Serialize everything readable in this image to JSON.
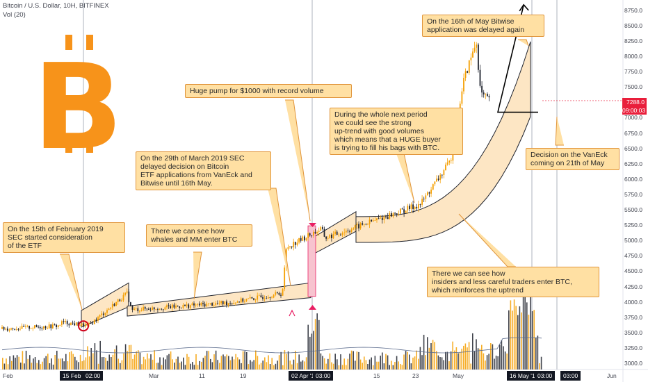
{
  "header": {
    "title": "Bitcoin / U.S. Dollar, 10H, BITFINEX",
    "indicator": "Vol (20)"
  },
  "colors": {
    "up": "#f59f00",
    "down": "#1e222d",
    "note_fill": "#ffe0a3",
    "note_border": "#e0943a",
    "channel_fill": "#fde6c4",
    "logo": "#f7931a",
    "price_flag": "#e91e3b",
    "time_flag": "#131722",
    "highlight": "#f7c3cf"
  },
  "logo": {
    "glyph": "B",
    "icon": "bitcoin-logo-icon"
  },
  "notes": {
    "feb": "On the 15th of February 2019\nSEC started consideration\nof the ETF",
    "whales": "There we can see how\nwhales and MM enter BTC",
    "march": "On the 29th of March 2019 SEC\ndelayed decision on Bitcoin\nETF applications from VanEck and\nBitwise until 16th May.",
    "pump": "Huge pump for $1000 with record volume",
    "uptrend": "During the whole next period\nwe could see the strong\nup-trend with good volumes\nwhich means that a HUGE buyer\nis trying to fill his bags with BTC.",
    "insiders": "There we can see how\ninsiders and less careful traders enter BTC,\nwhich reinforces the uptrend",
    "may16": "On the 16th of May Bitwise\napplication was delayed again",
    "vaneck": "Decision on the VanEck\ncoming on 21th of May"
  },
  "price_flags": {
    "price": "7288.0",
    "countdown": "09:00:03"
  },
  "time_flags": [
    "15 Feb '19",
    "02:00",
    "02 Apr '19",
    "03:00",
    "16 May '19",
    "03:00",
    "03:00"
  ],
  "chart_data": {
    "type": "candlestick",
    "y_axis_ticks": [
      3000,
      3250,
      3500,
      3750,
      4000,
      4250,
      4500,
      4750,
      5000,
      5250,
      5500,
      5750,
      6000,
      6250,
      6500,
      6750,
      7000,
      7250,
      7500,
      7750,
      8000,
      8250,
      8500,
      8750
    ],
    "ylim": [
      2950,
      8950
    ],
    "x_tick_labels": [
      "Feb",
      "Mar",
      "11",
      "19",
      "15",
      "23",
      "May",
      "Jun"
    ],
    "last_price": 7288.0,
    "price_path": [
      {
        "date": "2019-01-26",
        "price": 3570
      },
      {
        "date": "2019-02-08",
        "price": 3620
      },
      {
        "date": "2019-02-09",
        "price": 3680
      },
      {
        "date": "2019-02-15",
        "price": 3620
      },
      {
        "date": "2019-02-24",
        "price": 4150
      },
      {
        "date": "2019-02-25",
        "price": 3880
      },
      {
        "date": "2019-03-20",
        "price": 4000
      },
      {
        "date": "2019-04-01",
        "price": 4150
      },
      {
        "date": "2019-04-02",
        "price": 4900
      },
      {
        "date": "2019-04-10",
        "price": 5200
      },
      {
        "date": "2019-04-11",
        "price": 5050
      },
      {
        "date": "2019-04-25",
        "price": 5400
      },
      {
        "date": "2019-05-03",
        "price": 5600
      },
      {
        "date": "2019-05-10",
        "price": 6300
      },
      {
        "date": "2019-05-13",
        "price": 7600
      },
      {
        "date": "2019-05-16",
        "price": 8250
      },
      {
        "date": "2019-05-17",
        "price": 7400
      },
      {
        "date": "2019-05-19",
        "price": 7288
      }
    ],
    "projection": [
      {
        "date": "2019-05-21",
        "price": 7100
      },
      {
        "date": "2019-05-27",
        "price": 8850
      }
    ]
  }
}
